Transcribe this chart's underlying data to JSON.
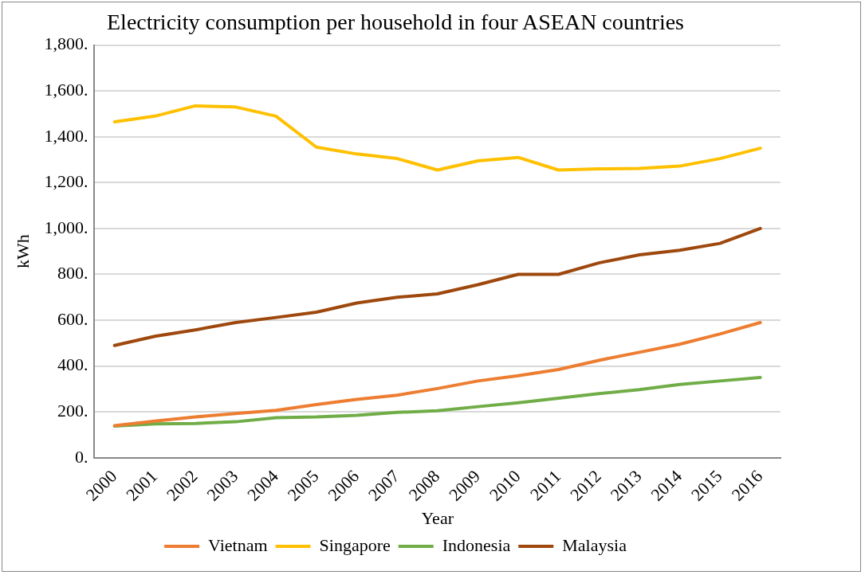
{
  "chart_data": {
    "type": "line",
    "title": "Electricity consumption per household in four ASEAN countries",
    "xlabel": "Year",
    "ylabel": "kWh",
    "categories": [
      "2000",
      "2001",
      "2002",
      "2003",
      "2004",
      "2005",
      "2006",
      "2007",
      "2008",
      "2009",
      "2010",
      "2011",
      "2012",
      "2013",
      "2014",
      "2015",
      "2016"
    ],
    "series": [
      {
        "name": "Vietnam",
        "color": "#ed7d31",
        "values": [
          140,
          160,
          178,
          193,
          207,
          232,
          255,
          273,
          302,
          335,
          358,
          385,
          425,
          460,
          495,
          540,
          590
        ]
      },
      {
        "name": "Singapore",
        "color": "#ffc000",
        "values": [
          1465,
          1490,
          1535,
          1530,
          1490,
          1355,
          1325,
          1305,
          1255,
          1295,
          1310,
          1255,
          1260,
          1262,
          1272,
          1305,
          1350
        ]
      },
      {
        "name": "Indonesia",
        "color": "#70ad47",
        "values": [
          138,
          148,
          150,
          157,
          175,
          178,
          185,
          198,
          205,
          223,
          240,
          260,
          280,
          297,
          320,
          335,
          350
        ]
      },
      {
        "name": "Malaysia",
        "color": "#9e480e",
        "values": [
          490,
          530,
          558,
          590,
          612,
          635,
          675,
          700,
          715,
          755,
          800,
          800,
          850,
          885,
          905,
          935,
          1000
        ]
      }
    ],
    "ylim": [
      0,
      1800
    ],
    "yticks": [
      {
        "value": 0,
        "label": "0."
      },
      {
        "value": 200,
        "label": "200."
      },
      {
        "value": 400,
        "label": "400."
      },
      {
        "value": 600,
        "label": "600."
      },
      {
        "value": 800,
        "label": "800."
      },
      {
        "value": 1000,
        "label": "1,000."
      },
      {
        "value": 1200,
        "label": "1,200."
      },
      {
        "value": 1400,
        "label": "1,400."
      },
      {
        "value": 1600,
        "label": "1,600."
      },
      {
        "value": 1800,
        "label": "1,800."
      }
    ],
    "grid": "y",
    "legend": "bottom",
    "marker": "none",
    "line_style": "solid"
  }
}
